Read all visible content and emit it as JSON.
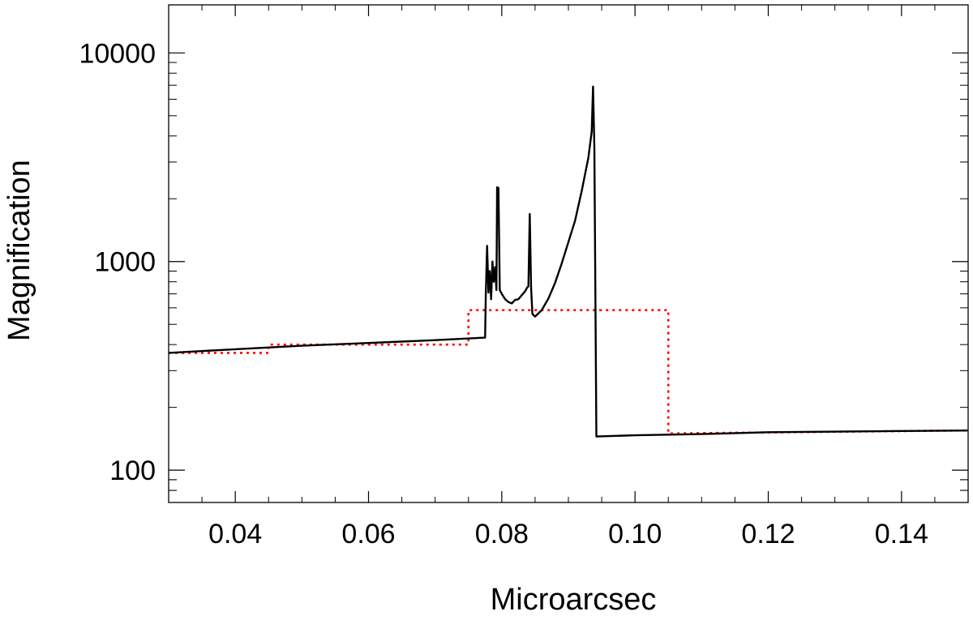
{
  "chart_data": {
    "type": "line",
    "xlabel": "Microarcsec",
    "ylabel": "Magnification",
    "xlim": [
      0.03,
      0.15
    ],
    "ylim": [
      70,
      17000
    ],
    "yscale": "log",
    "grid": false,
    "legend": "none",
    "x_ticks": [
      {
        "value": 0.04,
        "label": "0.04"
      },
      {
        "value": 0.06,
        "label": "0.06"
      },
      {
        "value": 0.08,
        "label": "0.08"
      },
      {
        "value": 0.1,
        "label": "0.10"
      },
      {
        "value": 0.12,
        "label": "0.12"
      },
      {
        "value": 0.14,
        "label": "0.14"
      }
    ],
    "y_ticks": [
      {
        "value": 100,
        "label": "100"
      },
      {
        "value": 1000,
        "label": "1000"
      },
      {
        "value": 10000,
        "label": "10000"
      }
    ],
    "series": [
      {
        "style": "solid",
        "color": "#000000",
        "points": [
          [
            0.03,
            365
          ],
          [
            0.04,
            380
          ],
          [
            0.05,
            395
          ],
          [
            0.06,
            407
          ],
          [
            0.07,
            420
          ],
          [
            0.0775,
            432
          ],
          [
            0.0776,
            690
          ],
          [
            0.0778,
            1190
          ],
          [
            0.078,
            710
          ],
          [
            0.0782,
            900
          ],
          [
            0.0784,
            660
          ],
          [
            0.0786,
            1000
          ],
          [
            0.0788,
            800
          ],
          [
            0.079,
            940
          ],
          [
            0.0792,
            730
          ],
          [
            0.0793,
            2270
          ],
          [
            0.0795,
            2250
          ],
          [
            0.0797,
            730
          ],
          [
            0.08,
            700
          ],
          [
            0.0805,
            660
          ],
          [
            0.081,
            640
          ],
          [
            0.0815,
            630
          ],
          [
            0.082,
            655
          ],
          [
            0.0825,
            660
          ],
          [
            0.083,
            690
          ],
          [
            0.0835,
            720
          ],
          [
            0.0838,
            750
          ],
          [
            0.084,
            760
          ],
          [
            0.0842,
            1690
          ],
          [
            0.0844,
            750
          ],
          [
            0.0846,
            560
          ],
          [
            0.085,
            545
          ],
          [
            0.086,
            585
          ],
          [
            0.087,
            665
          ],
          [
            0.088,
            790
          ],
          [
            0.089,
            980
          ],
          [
            0.09,
            1240
          ],
          [
            0.091,
            1570
          ],
          [
            0.092,
            2180
          ],
          [
            0.093,
            3150
          ],
          [
            0.0935,
            4200
          ],
          [
            0.0937,
            6900
          ],
          [
            0.0939,
            3500
          ],
          [
            0.0942,
            145
          ],
          [
            0.1,
            147
          ],
          [
            0.11,
            149
          ],
          [
            0.12,
            152
          ],
          [
            0.13,
            153
          ],
          [
            0.14,
            154
          ],
          [
            0.15,
            155
          ]
        ]
      },
      {
        "style": "dotted",
        "color": "#ff0000",
        "points": [
          [
            0.03,
            365
          ],
          [
            0.045,
            365
          ],
          [
            0.045,
            400
          ],
          [
            0.075,
            400
          ],
          [
            0.075,
            585
          ],
          [
            0.105,
            585
          ],
          [
            0.105,
            150
          ],
          [
            0.15,
            155
          ]
        ]
      }
    ]
  }
}
